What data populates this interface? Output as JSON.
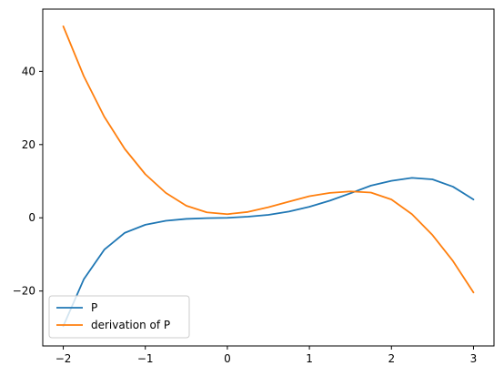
{
  "chart_data": {
    "type": "line",
    "xlim": [
      -2.25,
      3.25
    ],
    "ylim": [
      -35,
      57
    ],
    "x_ticks": [
      -2,
      -1,
      0,
      1,
      2,
      3
    ],
    "x_tick_labels": [
      "−2",
      "−1",
      "0",
      "1",
      "2",
      "3"
    ],
    "y_ticks": [
      -20,
      0,
      20,
      40
    ],
    "y_tick_labels": [
      "−20",
      "0",
      "20",
      "40"
    ],
    "grid": false,
    "legend_position": "lower-left",
    "series": [
      {
        "name": "P",
        "color": "#1f77b4",
        "x": [
          -2,
          -1.75,
          -1.5,
          -1.25,
          -1,
          -0.75,
          -0.5,
          -0.25,
          0,
          0.25,
          0.5,
          0.75,
          1,
          1.25,
          1.5,
          1.75,
          2,
          2.25,
          2.5,
          2.75,
          3
        ],
        "y": [
          -29.6,
          -16.8,
          -8.7,
          -4.1,
          -1.9,
          -0.8,
          -0.3,
          -0.1,
          0,
          0.3,
          0.8,
          1.7,
          3.0,
          4.7,
          6.7,
          8.8,
          10.1,
          10.9,
          10.5,
          8.5,
          5.0
        ]
      },
      {
        "name": "derivation of P",
        "color": "#ff7f0e",
        "x": [
          -2,
          -1.75,
          -1.5,
          -1.25,
          -1,
          -0.75,
          -0.5,
          -0.25,
          0,
          0.25,
          0.5,
          0.75,
          1,
          1.25,
          1.5,
          1.75,
          2,
          2.25,
          2.5,
          2.75,
          3
        ],
        "y": [
          52.3,
          38.7,
          27.6,
          18.8,
          11.9,
          6.8,
          3.3,
          1.5,
          1.0,
          1.6,
          2.9,
          4.4,
          5.9,
          6.8,
          7.2,
          6.9,
          5.0,
          1.0,
          -4.7,
          -11.8,
          -20.4
        ]
      }
    ]
  }
}
